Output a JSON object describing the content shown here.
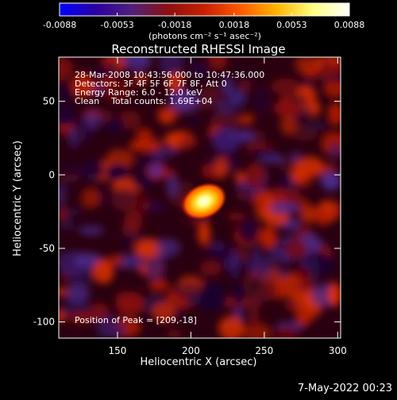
{
  "chart_data": {
    "type": "heatmap",
    "title": "Reconstructed RHESSI Image",
    "xlabel": "Heliocentric X (arcsec)",
    "ylabel": "Heliocentric Y (arcsec)",
    "xlim": [
      110,
      302
    ],
    "ylim": [
      -111,
      80
    ],
    "xticks": [
      150,
      200,
      250,
      300
    ],
    "yticks": [
      50,
      0,
      -50,
      -100
    ],
    "colorbar": {
      "min": -0.0088,
      "max": 0.0088,
      "tick_labels": [
        "-0.0088",
        "-0.0053",
        "-0.0018",
        "0.0018",
        "0.0053",
        "0.0088"
      ],
      "tick_values": [
        -0.0088,
        -0.0053,
        -0.0018,
        0.0018,
        0.0053,
        0.0088
      ],
      "unit_label": "(photons cm⁻² s⁻¹ asec⁻²)",
      "colors": [
        "#0000ff",
        "#2a00a0",
        "#50207a",
        "#8c1010",
        "#c82000",
        "#ff5a00",
        "#ffb400",
        "#ffff80",
        "#ffffff"
      ]
    },
    "annotations": {
      "time": "28-Mar-2008 10:43:56.000 to 10:47:36.000",
      "detectors": "Detectors: 3F 4F 5F 6F 7F 8F, Att 0",
      "energy": "Energy Range: 6.0 - 12.0 keV",
      "method": "Clean",
      "counts": "Total counts: 1.69E+04",
      "peak": "Position of Peak = [209,-18]"
    },
    "peak": {
      "x": 209,
      "y": -18
    }
  },
  "footer": {
    "date": "7-May-2022 00:23"
  }
}
